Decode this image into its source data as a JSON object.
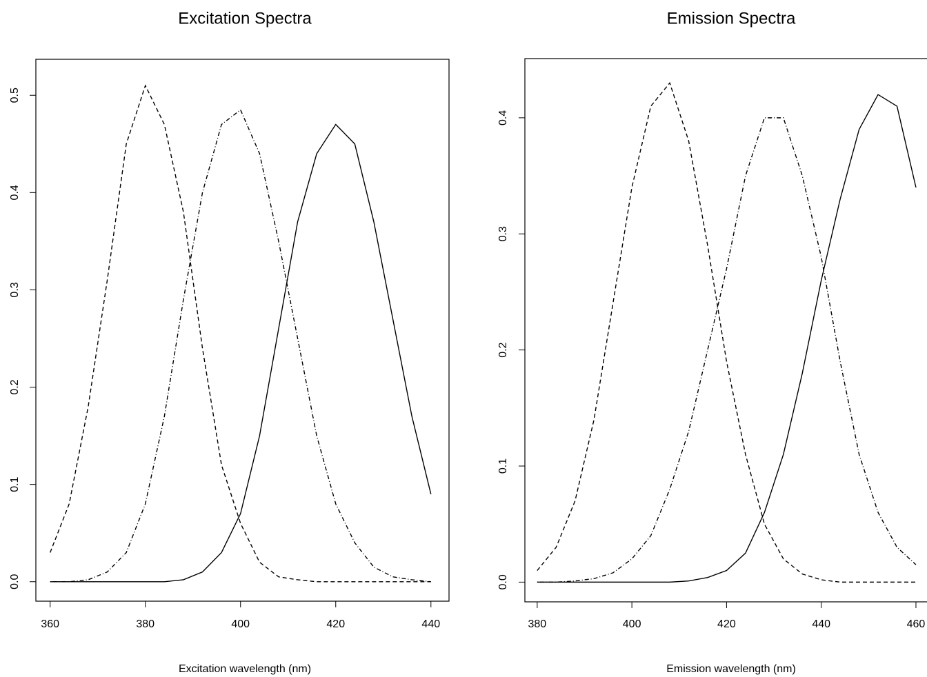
{
  "chart_data": [
    {
      "type": "line",
      "title": "Excitation Spectra",
      "xlabel": "Excitation wavelength (nm)",
      "x": [
        360,
        364,
        368,
        372,
        376,
        380,
        384,
        388,
        392,
        396,
        400,
        404,
        408,
        412,
        416,
        420,
        424,
        428,
        432,
        436,
        440
      ],
      "series": [
        {
          "color": "#000000",
          "line_style": "dashed",
          "values": [
            0.03,
            0.08,
            0.18,
            0.31,
            0.45,
            0.51,
            0.47,
            0.38,
            0.24,
            0.12,
            0.06,
            0.02,
            0.005,
            0.002,
            0,
            0,
            0,
            0,
            0,
            0,
            0
          ]
        },
        {
          "color": "#000000",
          "line_style": "dotdash",
          "values": [
            0,
            0,
            0.002,
            0.01,
            0.03,
            0.08,
            0.17,
            0.29,
            0.4,
            0.47,
            0.485,
            0.44,
            0.35,
            0.25,
            0.15,
            0.08,
            0.04,
            0.015,
            0.005,
            0.002,
            0
          ]
        },
        {
          "color": "#000000",
          "line_style": "solid",
          "values": [
            0,
            0,
            0,
            0,
            0,
            0,
            0,
            0.002,
            0.01,
            0.03,
            0.07,
            0.15,
            0.26,
            0.37,
            0.44,
            0.47,
            0.45,
            0.37,
            0.27,
            0.17,
            0.09
          ]
        }
      ],
      "xlim": [
        357,
        443.8
      ],
      "xticks": [
        360,
        380,
        400,
        420,
        440
      ],
      "ylim": [
        -0.02,
        0.537
      ],
      "yticks": [
        {
          "value": 0,
          "label": "0.0"
        },
        0.1,
        0.2,
        0.3,
        0.4,
        0.5
      ]
    },
    {
      "type": "line",
      "title": "Emission Spectra",
      "xlabel": "Emission wavelength (nm)",
      "x": [
        380,
        384,
        388,
        392,
        396,
        400,
        404,
        408,
        412,
        416,
        420,
        424,
        428,
        432,
        436,
        440,
        444,
        448,
        452,
        456,
        460
      ],
      "series": [
        {
          "color": "#000000",
          "line_style": "dashed",
          "values": [
            0.01,
            0.03,
            0.07,
            0.14,
            0.24,
            0.34,
            0.41,
            0.43,
            0.38,
            0.29,
            0.19,
            0.11,
            0.05,
            0.02,
            0.007,
            0.002,
            0,
            0,
            0,
            0,
            0
          ]
        },
        {
          "color": "#000000",
          "line_style": "dotdash",
          "values": [
            0,
            0,
            0.001,
            0.003,
            0.008,
            0.02,
            0.04,
            0.08,
            0.13,
            0.2,
            0.27,
            0.35,
            0.4,
            0.4,
            0.35,
            0.28,
            0.19,
            0.11,
            0.06,
            0.03,
            0.015
          ]
        },
        {
          "color": "#000000",
          "line_style": "solid",
          "values": [
            0,
            0,
            0,
            0,
            0,
            0,
            0,
            0,
            0.001,
            0.004,
            0.01,
            0.025,
            0.06,
            0.11,
            0.18,
            0.26,
            0.33,
            0.39,
            0.42,
            0.41,
            0.34
          ]
        }
      ],
      "xlim": [
        377.4,
        463.5
      ],
      "xticks": [
        380,
        400,
        420,
        440,
        460
      ],
      "ylim": [
        -0.017,
        0.451
      ],
      "yticks": [
        {
          "value": 0,
          "label": "0.0"
        },
        0.1,
        0.2,
        0.3,
        0.4
      ]
    }
  ]
}
